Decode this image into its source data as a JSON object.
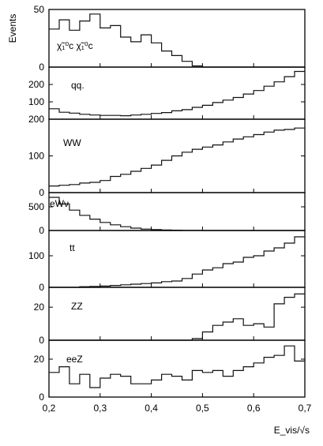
{
  "chart_data": {
    "type": "histogram",
    "x_label": "E_vis/√s",
    "x_ticks": [
      "0,2",
      "0,3",
      "0,4",
      "0,5",
      "0,6",
      "0,7"
    ],
    "x_range": [
      0.2,
      0.7
    ],
    "bin_width": 0.02,
    "y_label": "Events",
    "panels": [
      {
        "label": "χ̃₁⁰c χ̃₁⁰c",
        "ylim": [
          0,
          50
        ],
        "y_ticks": [
          "50",
          "0"
        ],
        "values": [
          33,
          41,
          32,
          40,
          46,
          34,
          36,
          26,
          22,
          28,
          21,
          14,
          10,
          5,
          1,
          0,
          0,
          0,
          0,
          0,
          0,
          0,
          0,
          0,
          0
        ]
      },
      {
        "label": "qq.",
        "ylim": [
          0,
          300
        ],
        "y_ticks": [
          "200",
          "100"
        ],
        "values": [
          60,
          40,
          35,
          28,
          24,
          22,
          22,
          20,
          24,
          28,
          33,
          38,
          48,
          55,
          68,
          80,
          96,
          110,
          125,
          145,
          165,
          190,
          215,
          245,
          275
        ]
      },
      {
        "label": "WW",
        "ylim": [
          0,
          200
        ],
        "y_ticks": [
          "200",
          "100",
          "0"
        ],
        "values": [
          18,
          20,
          22,
          26,
          28,
          33,
          44,
          50,
          58,
          66,
          75,
          88,
          100,
          110,
          118,
          124,
          130,
          138,
          146,
          152,
          158,
          165,
          170,
          172,
          176
        ]
      },
      {
        "label": "eWν",
        "ylim": [
          0,
          800
        ],
        "y_ticks": [
          "500",
          "0"
        ],
        "values": [
          700,
          560,
          430,
          320,
          240,
          170,
          120,
          80,
          50,
          30,
          18,
          10,
          6,
          3,
          1,
          0,
          0,
          0,
          0,
          0,
          0,
          0,
          0,
          0,
          0
        ]
      },
      {
        "label": "tt",
        "ylim": [
          0,
          180
        ],
        "y_ticks": [
          "100",
          "0"
        ],
        "values": [
          0,
          0,
          0,
          2,
          3,
          4,
          6,
          8,
          10,
          12,
          14,
          18,
          20,
          28,
          42,
          55,
          62,
          75,
          80,
          95,
          100,
          115,
          125,
          140,
          160
        ]
      },
      {
        "label": "ZZ",
        "ylim": [
          0,
          32
        ],
        "y_ticks": [
          "20",
          "0"
        ],
        "values": [
          0,
          0,
          0,
          0,
          0,
          0,
          0,
          0,
          0,
          0,
          0,
          0,
          0,
          0,
          1,
          5,
          9,
          11,
          13,
          9,
          10,
          8,
          22,
          26,
          28
        ]
      },
      {
        "label": "eeZ",
        "ylim": [
          0,
          30
        ],
        "y_ticks": [
          "20",
          "0"
        ],
        "values": [
          13,
          16,
          7,
          12,
          5,
          10,
          12,
          11,
          7,
          7,
          9,
          12,
          11,
          9,
          14,
          13,
          14,
          11,
          14,
          16,
          18,
          21,
          22,
          27,
          19
        ]
      }
    ]
  }
}
